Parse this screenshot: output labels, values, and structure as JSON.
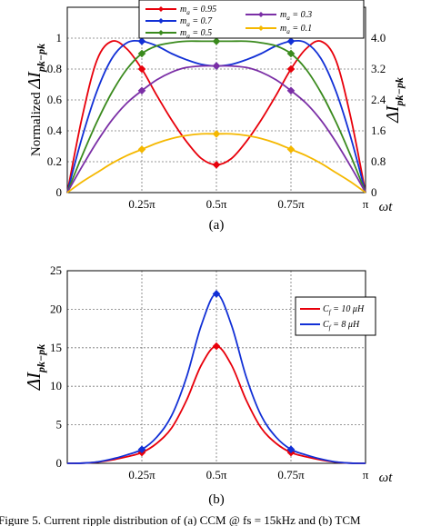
{
  "chart_data": [
    {
      "type": "line",
      "panel_label": "(a)",
      "ylabel": "Normalized ΔI",
      "ylabel_sub": "pk−pk",
      "ylabel_right": "ΔI",
      "ylabel_right_sub": "pk−pk",
      "xlabel": "ωt",
      "xlim": [
        0,
        3.1416
      ],
      "ylim": [
        0,
        1.2
      ],
      "x_ticks": [
        0.7854,
        1.5708,
        2.3562,
        3.1416
      ],
      "x_tick_labels": [
        "0.25π",
        "0.5π",
        "0.75π",
        "π"
      ],
      "y_ticks": [
        0,
        0.2,
        0.4,
        0.6,
        0.8,
        1
      ],
      "y_tick_labels": [
        "0",
        "0.2",
        "0.4",
        "0.6",
        "0.8",
        "1"
      ],
      "y2_ticks": [
        0,
        0.2,
        0.4,
        0.6,
        0.8,
        1
      ],
      "y2_tick_labels": [
        "0",
        "0.8",
        "1.6",
        "2.4",
        "3.2",
        "4.0"
      ],
      "grid": true,
      "legend_position": "top-center",
      "x": [
        0,
        0.1571,
        0.3142,
        0.4712,
        0.6283,
        0.7854,
        0.9425,
        1.0996,
        1.2566,
        1.4137,
        1.5708,
        1.7279,
        1.885,
        2.042,
        2.1991,
        2.3562,
        2.5133,
        2.6704,
        2.8274,
        2.9845,
        3.1416
      ],
      "series": [
        {
          "name": "ma = 0.95",
          "name_main": "m",
          "name_sub": "a",
          "name_val": " = 0.95",
          "color": "#e8000b",
          "marker_x": [
            0.7854,
            1.5708,
            2.3562
          ],
          "values": [
            0,
            0.49,
            0.86,
            0.98,
            0.93,
            0.8,
            0.63,
            0.47,
            0.33,
            0.22,
            0.18,
            0.22,
            0.33,
            0.47,
            0.63,
            0.8,
            0.93,
            0.98,
            0.86,
            0.49,
            0
          ]
        },
        {
          "name": "ma = 0.7",
          "name_main": "m",
          "name_sub": "a",
          "name_val": " = 0.7",
          "color": "#1230d6",
          "marker_x": [
            0.7854,
            1.5708,
            2.3562
          ],
          "values": [
            0,
            0.36,
            0.66,
            0.87,
            0.97,
            0.98,
            0.95,
            0.9,
            0.86,
            0.83,
            0.82,
            0.83,
            0.86,
            0.9,
            0.95,
            0.98,
            0.97,
            0.87,
            0.66,
            0.36,
            0
          ]
        },
        {
          "name": "ma = 0.5",
          "name_main": "m",
          "name_sub": "a",
          "name_val": " = 0.5",
          "color": "#3a8a1d",
          "marker_x": [
            0.7854,
            1.5708,
            2.3562
          ],
          "values": [
            0,
            0.24,
            0.46,
            0.65,
            0.8,
            0.9,
            0.95,
            0.97,
            0.98,
            0.98,
            0.98,
            0.98,
            0.98,
            0.97,
            0.95,
            0.9,
            0.8,
            0.65,
            0.46,
            0.24,
            0
          ]
        },
        {
          "name": "ma = 0.3",
          "name_main": "m",
          "name_sub": "a",
          "name_val": " = 0.3",
          "color": "#7b2fa6",
          "marker_x": [
            0.7854,
            1.5708,
            2.3562
          ],
          "values": [
            0,
            0.17,
            0.33,
            0.47,
            0.58,
            0.66,
            0.73,
            0.78,
            0.81,
            0.82,
            0.82,
            0.82,
            0.81,
            0.78,
            0.73,
            0.66,
            0.58,
            0.47,
            0.33,
            0.17,
            0
          ]
        },
        {
          "name": "ma = 0.1",
          "name_main": "m",
          "name_sub": "a",
          "name_val": " = 0.1",
          "color": "#f5b800",
          "marker_x": [
            0.7854,
            1.5708,
            2.3562
          ],
          "values": [
            0,
            0.07,
            0.13,
            0.19,
            0.24,
            0.28,
            0.32,
            0.35,
            0.37,
            0.38,
            0.38,
            0.38,
            0.37,
            0.35,
            0.32,
            0.28,
            0.24,
            0.19,
            0.13,
            0.07,
            0
          ]
        }
      ]
    },
    {
      "type": "line",
      "panel_label": "(b)",
      "ylabel": "ΔI",
      "ylabel_sub": "pk−pk",
      "xlabel": "ωt",
      "xlim": [
        0,
        3.1416
      ],
      "ylim": [
        0,
        25
      ],
      "x_ticks": [
        0.7854,
        1.5708,
        2.3562,
        3.1416
      ],
      "x_tick_labels": [
        "0.25π",
        "0.5π",
        "0.75π",
        "π"
      ],
      "y_ticks": [
        0,
        5,
        10,
        15,
        20,
        25
      ],
      "y_tick_labels": [
        "0",
        "5",
        "10",
        "15",
        "20",
        "25"
      ],
      "grid": true,
      "legend_position": "right",
      "x": [
        0,
        0.1571,
        0.3142,
        0.4712,
        0.6283,
        0.7854,
        0.9425,
        1.0996,
        1.2566,
        1.4137,
        1.5708,
        1.7279,
        1.885,
        2.042,
        2.1991,
        2.3562,
        2.5133,
        2.6704,
        2.8274,
        2.9845,
        3.1416
      ],
      "series": [
        {
          "name": "Cf = 10 μH",
          "name_main": "C",
          "name_sub": "f",
          "name_val": " = 10 μH",
          "color": "#e8000b",
          "marker_x": [
            0.7854,
            1.5708,
            2.3562
          ],
          "values": [
            0,
            0.02,
            0.15,
            0.45,
            0.85,
            1.4,
            2.6,
            4.6,
            8.2,
            12.8,
            15.2,
            12.8,
            8.2,
            4.6,
            2.6,
            1.4,
            0.85,
            0.45,
            0.15,
            0.02,
            0
          ]
        },
        {
          "name": "Cf = 8 μH",
          "name_main": "C",
          "name_sub": "f",
          "name_val": " = 8 μH",
          "color": "#1230d6",
          "marker_x": [
            0.7854,
            1.5708,
            2.3562
          ],
          "values": [
            0,
            0.02,
            0.18,
            0.55,
            1.1,
            1.8,
            3.4,
            6.2,
            11.2,
            18.0,
            22.0,
            18.0,
            11.2,
            6.2,
            3.4,
            1.8,
            1.1,
            0.55,
            0.18,
            0.02,
            0
          ]
        }
      ]
    }
  ],
  "caption": "Figure 5. Current ripple distribution of (a) CCM @ fs = 15kHz and (b) TCM"
}
